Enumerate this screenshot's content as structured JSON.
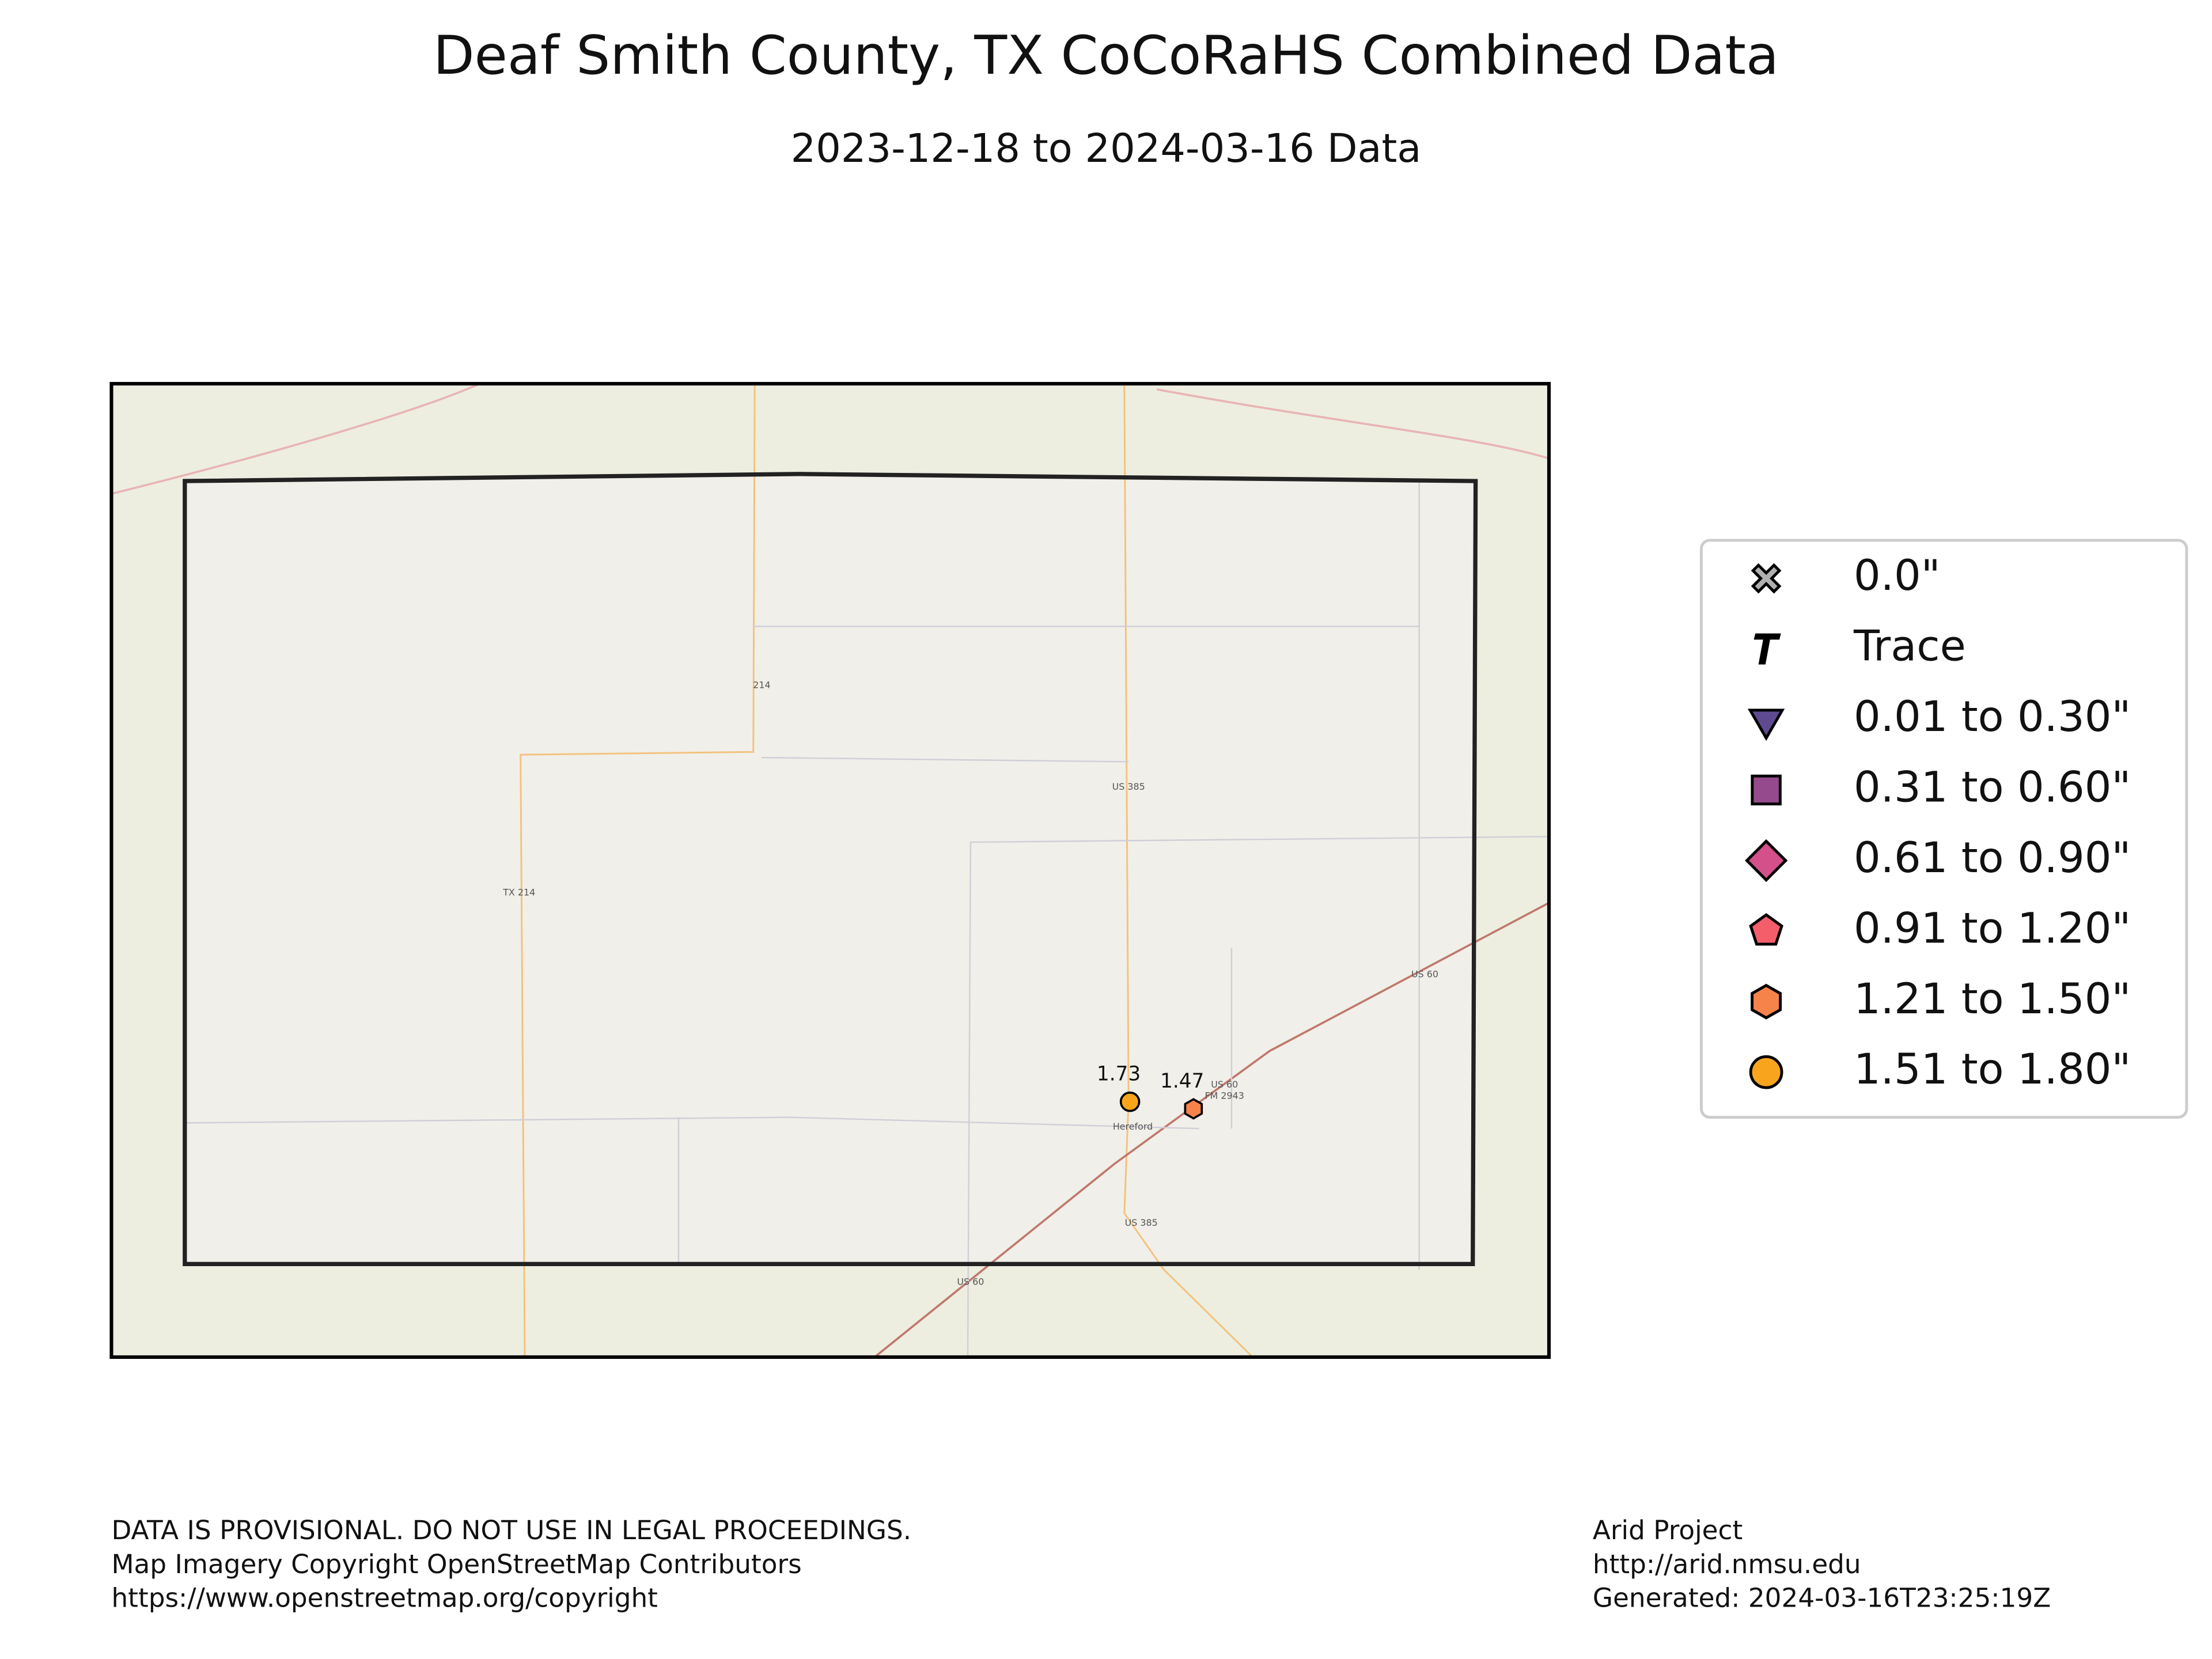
{
  "title": "Deaf Smith County, TX CoCoRaHS Combined Data",
  "subtitle": "2023-12-18 to 2024-03-16 Data",
  "legend": [
    {
      "label": "0.0\"",
      "marker": "x",
      "color": "#b0b0b0"
    },
    {
      "label": "Trace",
      "marker": "t",
      "color": "#000000"
    },
    {
      "label": "0.01 to 0.30\"",
      "marker": "triangle-down",
      "color": "#5e4b8f"
    },
    {
      "label": "0.31 to 0.60\"",
      "marker": "square",
      "color": "#954a8e"
    },
    {
      "label": "0.61 to 0.90\"",
      "marker": "diamond",
      "color": "#d3508a"
    },
    {
      "label": "0.91 to 1.20\"",
      "marker": "pentagon",
      "color": "#f35e6a"
    },
    {
      "label": "1.21 to 1.50\"",
      "marker": "hexagon",
      "color": "#f6844a"
    },
    {
      "label": "1.51 to 1.80\"",
      "marker": "circle",
      "color": "#f8a51d"
    }
  ],
  "stations": [
    {
      "value": 1.73,
      "marker": "circle",
      "color": "#f8a51d"
    },
    {
      "value": 1.47,
      "marker": "hexagon",
      "color": "#f6844a"
    }
  ],
  "map_labels": [
    "US 385",
    "TX 214",
    "214",
    "US 60",
    "US 60",
    "FM 2943",
    "Hereford",
    "US 385",
    "US 60"
  ],
  "footer_left": [
    "DATA IS PROVISIONAL. DO NOT USE IN LEGAL PROCEEDINGS.",
    "Map Imagery Copyright OpenStreetMap Contributors",
    "https://www.openstreetmap.org/copyright"
  ],
  "footer_right": [
    "Arid Project",
    "http://arid.nmsu.edu",
    "Generated: 2024-03-16T23:25:19Z"
  ]
}
